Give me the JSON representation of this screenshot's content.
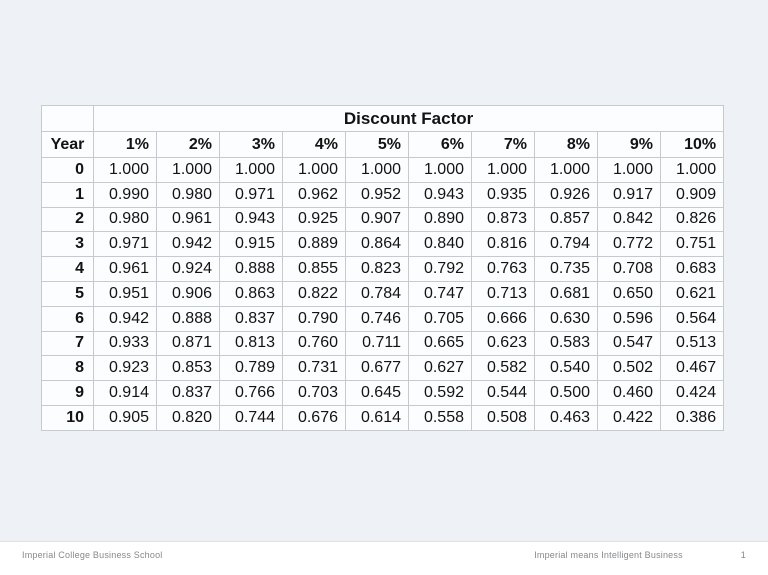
{
  "table": {
    "title": "Discount Factor",
    "year_header": "Year",
    "rate_headers": [
      "1%",
      "2%",
      "3%",
      "4%",
      "5%",
      "6%",
      "7%",
      "8%",
      "9%",
      "10%"
    ],
    "rows": [
      {
        "year": "0",
        "values": [
          "1.000",
          "1.000",
          "1.000",
          "1.000",
          "1.000",
          "1.000",
          "1.000",
          "1.000",
          "1.000",
          "1.000"
        ]
      },
      {
        "year": "1",
        "values": [
          "0.990",
          "0.980",
          "0.971",
          "0.962",
          "0.952",
          "0.943",
          "0.935",
          "0.926",
          "0.917",
          "0.909"
        ]
      },
      {
        "year": "2",
        "values": [
          "0.980",
          "0.961",
          "0.943",
          "0.925",
          "0.907",
          "0.890",
          "0.873",
          "0.857",
          "0.842",
          "0.826"
        ]
      },
      {
        "year": "3",
        "values": [
          "0.971",
          "0.942",
          "0.915",
          "0.889",
          "0.864",
          "0.840",
          "0.816",
          "0.794",
          "0.772",
          "0.751"
        ]
      },
      {
        "year": "4",
        "values": [
          "0.961",
          "0.924",
          "0.888",
          "0.855",
          "0.823",
          "0.792",
          "0.763",
          "0.735",
          "0.708",
          "0.683"
        ]
      },
      {
        "year": "5",
        "values": [
          "0.951",
          "0.906",
          "0.863",
          "0.822",
          "0.784",
          "0.747",
          "0.713",
          "0.681",
          "0.650",
          "0.621"
        ]
      },
      {
        "year": "6",
        "values": [
          "0.942",
          "0.888",
          "0.837",
          "0.790",
          "0.746",
          "0.705",
          "0.666",
          "0.630",
          "0.596",
          "0.564"
        ]
      },
      {
        "year": "7",
        "values": [
          "0.933",
          "0.871",
          "0.813",
          "0.760",
          "0.711",
          "0.665",
          "0.623",
          "0.583",
          "0.547",
          "0.513"
        ]
      },
      {
        "year": "8",
        "values": [
          "0.923",
          "0.853",
          "0.789",
          "0.731",
          "0.677",
          "0.627",
          "0.582",
          "0.540",
          "0.502",
          "0.467"
        ]
      },
      {
        "year": "9",
        "values": [
          "0.914",
          "0.837",
          "0.766",
          "0.703",
          "0.645",
          "0.592",
          "0.544",
          "0.500",
          "0.460",
          "0.424"
        ]
      },
      {
        "year": "10",
        "values": [
          "0.905",
          "0.820",
          "0.744",
          "0.676",
          "0.614",
          "0.558",
          "0.508",
          "0.463",
          "0.422",
          "0.386"
        ]
      }
    ]
  },
  "footer": {
    "left": "Imperial College Business School",
    "right": "Imperial means Intelligent Business",
    "page": "1"
  },
  "colors": {
    "slide_background": "#eef1f6",
    "cell_background": "#fcfdfe",
    "border": "#c6c9cd",
    "footer_text": "#85898d"
  }
}
